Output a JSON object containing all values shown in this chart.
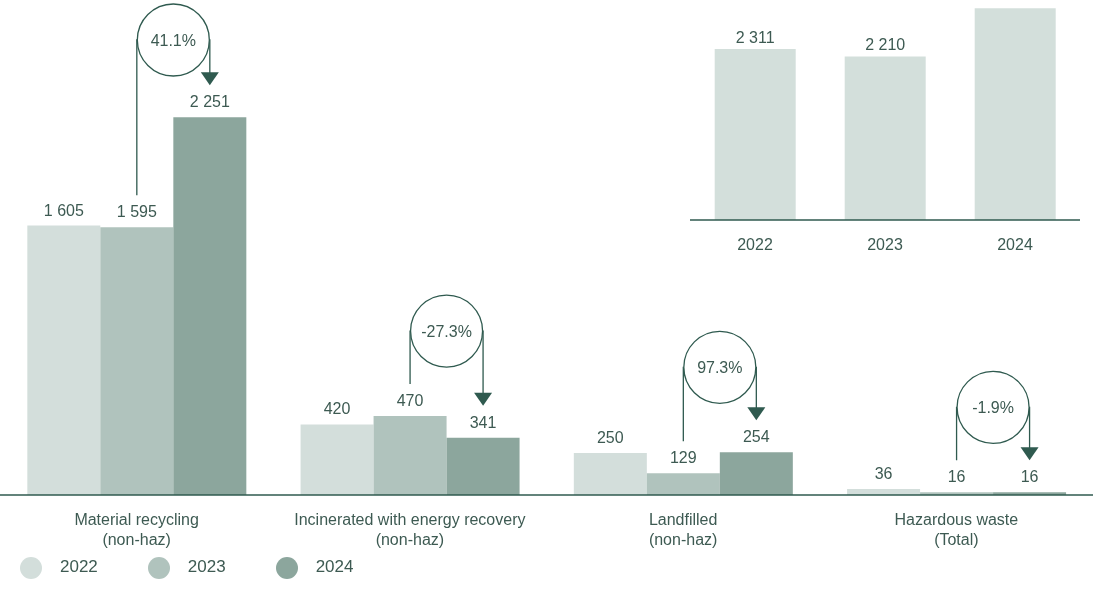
{
  "chart_data": [
    {
      "type": "bar",
      "categories": [
        "Material recycling\n(non-haz)",
        "Incinerated with energy recovery\n(non-haz)",
        "Landfilled\n(non-haz)",
        "Hazardous waste\n(Total)"
      ],
      "series": [
        {
          "name": "2022",
          "color": "#d3dedb",
          "values": [
            1605,
            420,
            250,
            36
          ],
          "value_labels": [
            "1 605",
            "420",
            "250",
            "36"
          ]
        },
        {
          "name": "2023",
          "color": "#b0c3bd",
          "values": [
            1595,
            470,
            129,
            16
          ],
          "value_labels": [
            "1 595",
            "470",
            "129",
            "16"
          ]
        },
        {
          "name": "2024",
          "color": "#8ca69d",
          "values": [
            2251,
            341,
            254,
            16
          ],
          "value_labels": [
            "2 251",
            "341",
            "254",
            "16"
          ]
        }
      ],
      "legend": "bottom left",
      "annotations": [
        "41.1%",
        "-27.3%",
        "97.3%",
        "-1.9%"
      ]
    },
    {
      "type": "bar",
      "categories": [
        "2022",
        "2023",
        "2024"
      ],
      "values": [
        2311,
        2210,
        2862
      ],
      "value_labels": [
        "2 311",
        "2 210",
        null
      ],
      "color": "#d3dfdb"
    }
  ]
}
